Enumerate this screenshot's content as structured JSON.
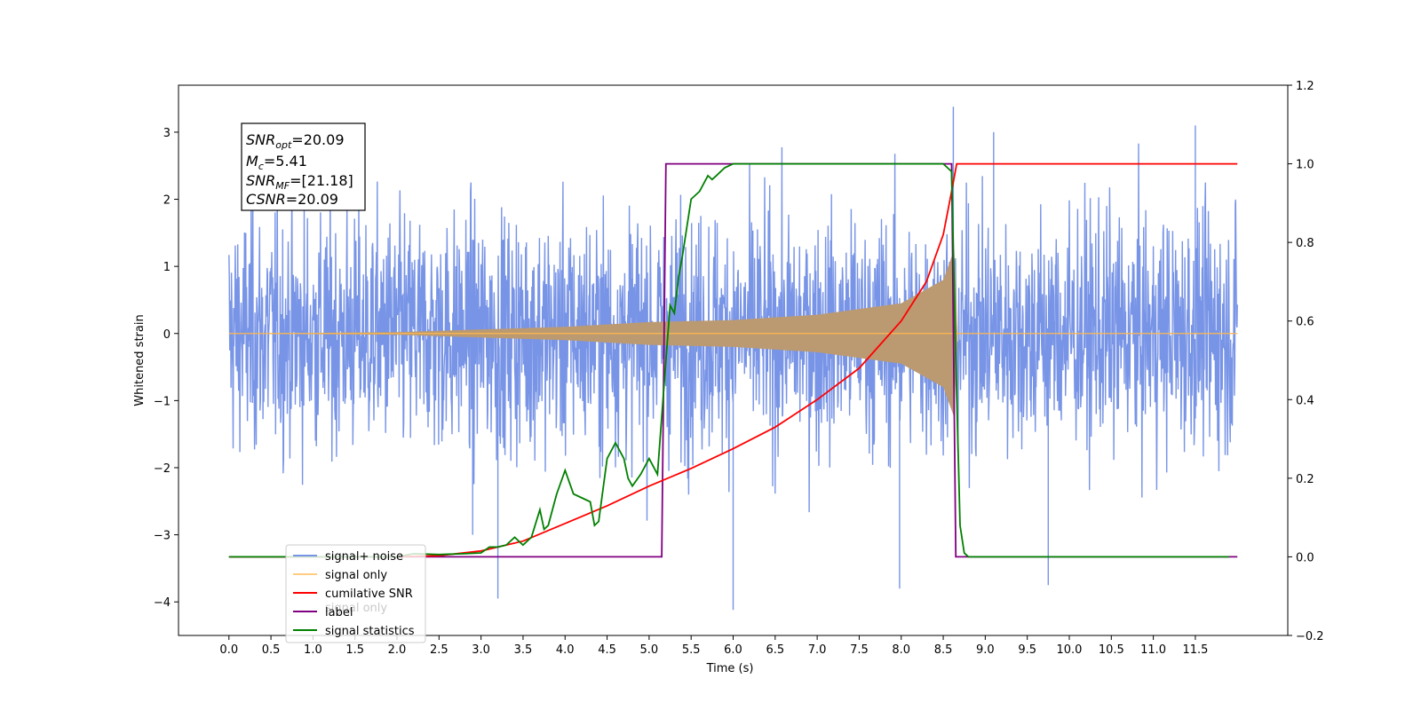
{
  "chart_data": {
    "type": "line",
    "xlabel": "Time (s)",
    "ylabel_left": "Whitened strain",
    "ylabel_right": "",
    "xlim": [
      -0.6,
      12.6
    ],
    "ylim_left": [
      -4.5,
      3.7
    ],
    "ylim_right": [
      -0.2,
      1.2
    ],
    "x_ticks": [
      "0.0",
      "0.5",
      "1.0",
      "1.5",
      "2.0",
      "2.5",
      "3.0",
      "3.5",
      "4.0",
      "4.5",
      "5.0",
      "5.5",
      "6.0",
      "6.5",
      "7.0",
      "7.5",
      "8.0",
      "8.5",
      "9.0",
      "9.5",
      "10.0",
      "10.5",
      "11.0",
      "11.5"
    ],
    "y_ticks_left": [
      "−4",
      "−3",
      "−2",
      "−1",
      "0",
      "1",
      "2",
      "3"
    ],
    "y_ticks_right": [
      "−0.2",
      "0.0",
      "0.2",
      "0.4",
      "0.6",
      "0.8",
      "1.0",
      "1.2"
    ],
    "grid": false,
    "legend_position": "lower-left",
    "annotation": {
      "snr_opt": "=20.09",
      "mc": "=5.41",
      "snr_mf": "=[21.18]",
      "csnr": "=20.09"
    },
    "series": [
      {
        "name": "signal+ noise",
        "color": "#7894e6",
        "axis": "left",
        "x_range": [
          0.0,
          12.0
        ],
        "typical_amplitude": 1.6,
        "peak_values": [
          3.38,
          -4.12,
          -3.95
        ]
      },
      {
        "name": "signal only",
        "color": "#ffb74d",
        "axis": "left",
        "x_range": [
          0.0,
          12.0
        ],
        "envelope": [
          {
            "x": 0.0,
            "y": 0.0
          },
          {
            "x": 2.0,
            "y": 0.02
          },
          {
            "x": 4.0,
            "y": 0.1
          },
          {
            "x": 5.0,
            "y": 0.17
          },
          {
            "x": 6.0,
            "y": 0.2
          },
          {
            "x": 7.0,
            "y": 0.28
          },
          {
            "x": 8.0,
            "y": 0.45
          },
          {
            "x": 8.5,
            "y": 0.8
          },
          {
            "x": 8.63,
            "y": 1.25
          },
          {
            "x": 8.67,
            "y": 0.0
          }
        ]
      },
      {
        "name": "cumilative SNR",
        "color": "#ff0000",
        "axis": "right",
        "x": [
          0.0,
          1.0,
          2.0,
          2.5,
          3.0,
          3.5,
          4.0,
          4.5,
          5.0,
          5.5,
          6.0,
          6.5,
          7.0,
          7.5,
          8.0,
          8.3,
          8.5,
          8.6,
          8.66,
          12.0
        ],
        "y": [
          0.0,
          0.0,
          0.0,
          0.003,
          0.015,
          0.04,
          0.085,
          0.13,
          0.18,
          0.225,
          0.275,
          0.33,
          0.4,
          0.48,
          0.6,
          0.7,
          0.82,
          0.93,
          1.0,
          1.0
        ]
      },
      {
        "name": "label",
        "color": "#800080",
        "axis": "right",
        "x": [
          0.0,
          5.15,
          5.2,
          8.6,
          8.65,
          12.0
        ],
        "y": [
          0.0,
          0.0,
          1.0,
          1.0,
          0.0,
          0.0
        ]
      },
      {
        "name": "signal statistics",
        "color": "#008000",
        "axis": "right",
        "x": [
          0.0,
          2.0,
          2.2,
          2.5,
          2.8,
          3.0,
          3.1,
          3.2,
          3.3,
          3.4,
          3.5,
          3.6,
          3.7,
          3.75,
          3.8,
          3.9,
          4.0,
          4.1,
          4.2,
          4.3,
          4.35,
          4.4,
          4.5,
          4.6,
          4.7,
          4.75,
          4.8,
          4.9,
          5.0,
          5.1,
          5.2,
          5.25,
          5.3,
          5.35,
          5.4,
          5.5,
          5.6,
          5.7,
          5.75,
          5.8,
          5.9,
          6.0,
          6.2,
          8.5,
          8.6,
          8.65,
          8.7,
          8.75,
          8.8,
          11.9
        ],
        "y": [
          0.0,
          0.0,
          0.008,
          0.006,
          0.008,
          0.01,
          0.025,
          0.025,
          0.03,
          0.05,
          0.03,
          0.05,
          0.12,
          0.07,
          0.08,
          0.16,
          0.22,
          0.16,
          0.15,
          0.14,
          0.08,
          0.09,
          0.25,
          0.29,
          0.25,
          0.2,
          0.18,
          0.21,
          0.25,
          0.21,
          0.5,
          0.64,
          0.62,
          0.71,
          0.77,
          0.91,
          0.93,
          0.97,
          0.96,
          0.97,
          0.99,
          1.0,
          1.0,
          1.0,
          0.98,
          0.5,
          0.08,
          0.01,
          0.0,
          0.0
        ]
      }
    ],
    "legend_entries": [
      "signal+ noise",
      "signal only",
      "cumilative SNR",
      "label",
      "signal statistics"
    ],
    "legend_occluded_text": "signal only"
  }
}
